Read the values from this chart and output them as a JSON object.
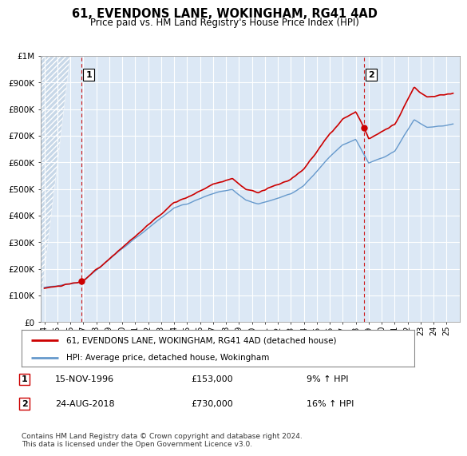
{
  "title": "61, EVENDONS LANE, WOKINGHAM, RG41 4AD",
  "subtitle": "Price paid vs. HM Land Registry's House Price Index (HPI)",
  "ylim": [
    0,
    1000000
  ],
  "yticks": [
    0,
    100000,
    200000,
    300000,
    400000,
    500000,
    600000,
    700000,
    800000,
    900000,
    1000000
  ],
  "ytick_labels": [
    "£0",
    "£100K",
    "£200K",
    "£300K",
    "£400K",
    "£500K",
    "£600K",
    "£700K",
    "£800K",
    "£900K",
    "£1M"
  ],
  "sale1_date": 1996.88,
  "sale1_price": 153000,
  "sale2_date": 2018.65,
  "sale2_price": 730000,
  "line1_color": "#cc0000",
  "line2_color": "#6699cc",
  "marker_color": "#cc0000",
  "vline_color": "#cc0000",
  "legend_label1": "61, EVENDONS LANE, WOKINGHAM, RG41 4AD (detached house)",
  "legend_label2": "HPI: Average price, detached house, Wokingham",
  "footer": "Contains HM Land Registry data © Crown copyright and database right 2024.\nThis data is licensed under the Open Government Licence v3.0.",
  "background_color": "#ffffff",
  "plot_bg_color": "#dce8f5",
  "grid_color": "#ffffff",
  "hatch_bg_color": "#c8d8e8"
}
